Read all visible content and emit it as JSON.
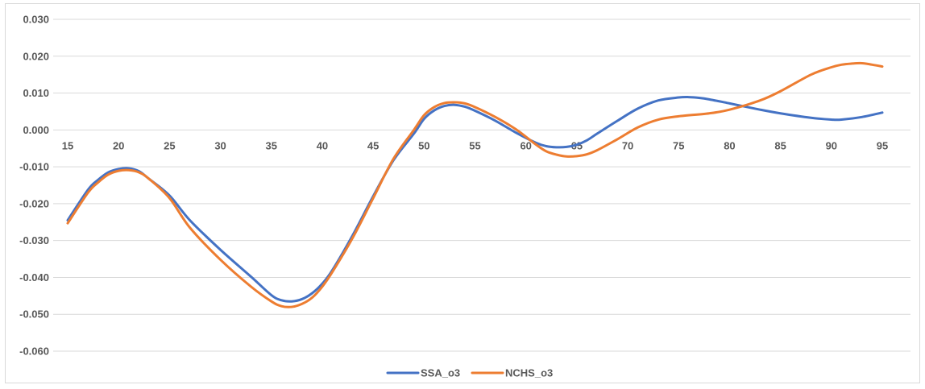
{
  "chart_data": {
    "type": "line",
    "title": "",
    "xlabel": "",
    "ylabel": "",
    "xlim": [
      15,
      95
    ],
    "ylim": [
      -0.06,
      0.03
    ],
    "x_ticks": [
      15,
      20,
      25,
      30,
      35,
      40,
      45,
      50,
      55,
      60,
      65,
      70,
      75,
      80,
      85,
      90,
      95
    ],
    "x_tick_labels": [
      "15",
      "20",
      "25",
      "30",
      "35",
      "40",
      "45",
      "50",
      "55",
      "60",
      "65",
      "70",
      "75",
      "80",
      "85",
      "90",
      "95"
    ],
    "y_ticks": [
      0.03,
      0.02,
      0.01,
      0.0,
      -0.01,
      -0.02,
      -0.03,
      -0.04,
      -0.05,
      -0.06
    ],
    "y_tick_labels": [
      "0.030",
      "0.020",
      "0.010",
      "0.000",
      "-0.010",
      "-0.020",
      "-0.030",
      "-0.040",
      "-0.050",
      "-0.060"
    ],
    "grid": "horizontal",
    "legend": "bottom",
    "series": [
      {
        "name": "SSA_o3",
        "color": "#4472C4",
        "x": [
          15,
          17,
          18,
          19,
          20,
          21,
          22,
          23,
          25,
          27,
          30,
          33,
          35,
          36,
          37,
          38,
          39,
          40,
          41,
          43,
          45,
          47,
          49,
          50,
          51,
          52,
          53,
          54,
          55,
          57,
          59,
          61,
          62,
          63,
          64,
          65,
          66,
          67,
          69,
          71,
          73,
          75,
          76,
          77,
          78,
          80,
          83,
          85,
          88,
          90,
          91,
          93,
          95
        ],
        "y": [
          -0.0245,
          -0.0162,
          -0.0135,
          -0.0115,
          -0.0106,
          -0.0104,
          -0.0112,
          -0.0133,
          -0.0178,
          -0.0245,
          -0.0325,
          -0.0398,
          -0.0448,
          -0.0462,
          -0.0465,
          -0.0459,
          -0.0443,
          -0.0417,
          -0.038,
          -0.0285,
          -0.018,
          -0.0082,
          -0.001,
          0.003,
          0.0053,
          0.0065,
          0.0068,
          0.0063,
          0.0052,
          0.0025,
          -0.0007,
          -0.0035,
          -0.0044,
          -0.0047,
          -0.0046,
          -0.004,
          -0.0028,
          -0.001,
          0.0025,
          0.0058,
          0.008,
          0.0088,
          0.0089,
          0.0087,
          0.0083,
          0.0072,
          0.0055,
          0.0045,
          0.0033,
          0.0028,
          0.0028,
          0.0035,
          0.0047
        ]
      },
      {
        "name": "NCHS_o3",
        "color": "#ED7D31",
        "x": [
          15,
          17,
          18,
          19,
          20,
          21,
          22,
          23,
          25,
          27,
          30,
          33,
          35,
          36,
          37,
          38,
          39,
          40,
          41,
          43,
          45,
          47,
          49,
          50,
          51,
          52,
          53,
          54,
          55,
          57,
          59,
          61,
          62,
          63,
          64,
          65,
          66,
          67,
          69,
          71,
          73,
          75,
          78,
          80,
          83,
          85,
          88,
          90,
          91,
          92,
          93,
          94,
          95
        ],
        "y": [
          -0.0253,
          -0.017,
          -0.0142,
          -0.0121,
          -0.0111,
          -0.0109,
          -0.0115,
          -0.0133,
          -0.0185,
          -0.0265,
          -0.0352,
          -0.0425,
          -0.0465,
          -0.0478,
          -0.048,
          -0.0472,
          -0.0455,
          -0.0425,
          -0.0385,
          -0.0292,
          -0.0185,
          -0.0078,
          0.0,
          0.004,
          0.0062,
          0.0073,
          0.0075,
          0.0072,
          0.0062,
          0.0035,
          0.0002,
          -0.004,
          -0.0058,
          -0.0067,
          -0.0072,
          -0.0071,
          -0.0066,
          -0.0055,
          -0.0025,
          0.0007,
          0.0028,
          0.0037,
          0.0045,
          0.0055,
          0.008,
          0.0105,
          0.015,
          0.017,
          0.0177,
          0.018,
          0.0181,
          0.0177,
          0.0172
        ]
      }
    ]
  }
}
